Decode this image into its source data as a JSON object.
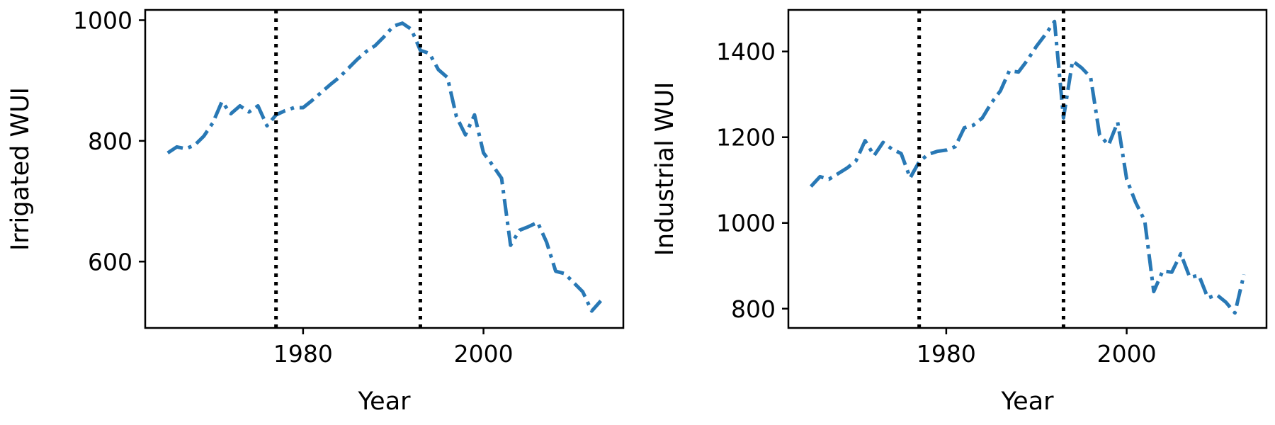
{
  "chart_data": [
    {
      "type": "line",
      "xlabel": "Year",
      "ylabel": "Irrigated WUI",
      "xlim": [
        1962.5,
        2015.5
      ],
      "ylim": [
        490,
        1017
      ],
      "xticks": [
        1980,
        2000
      ],
      "xtick_labels": [
        "1980",
        "2000"
      ],
      "yticks": [
        600,
        800,
        1000
      ],
      "ytick_labels": [
        "600",
        "800",
        "1000"
      ],
      "vlines": [
        1977,
        1993
      ],
      "line_color": "#2878b5",
      "x": [
        1965,
        1966,
        1967,
        1968,
        1969,
        1970,
        1971,
        1972,
        1973,
        1974,
        1975,
        1976,
        1977,
        1978,
        1979,
        1980,
        1981,
        1982,
        1983,
        1984,
        1985,
        1986,
        1987,
        1988,
        1989,
        1990,
        1991,
        1992,
        1993,
        1994,
        1995,
        1996,
        1997,
        1998,
        1999,
        2000,
        2001,
        2002,
        2003,
        2004,
        2005,
        2006,
        2007,
        2008,
        2009,
        2010,
        2011,
        2012,
        2013
      ],
      "values": [
        780,
        790,
        787,
        793,
        808,
        830,
        865,
        845,
        858,
        848,
        858,
        825,
        843,
        850,
        855,
        855,
        867,
        880,
        893,
        905,
        920,
        935,
        948,
        958,
        973,
        990,
        995,
        985,
        950,
        945,
        918,
        905,
        840,
        810,
        843,
        780,
        760,
        738,
        627,
        652,
        658,
        665,
        632,
        584,
        580,
        565,
        550,
        518,
        535
      ]
    },
    {
      "type": "line",
      "xlabel": "Year",
      "ylabel": "Industrial WUI",
      "xlim": [
        1962.5,
        2015.5
      ],
      "ylim": [
        755,
        1497
      ],
      "xticks": [
        1980,
        2000
      ],
      "xtick_labels": [
        "1980",
        "2000"
      ],
      "yticks": [
        800,
        1000,
        1200,
        1400
      ],
      "ytick_labels": [
        "800",
        "1000",
        "1200",
        "1400"
      ],
      "vlines": [
        1977,
        1993
      ],
      "line_color": "#2878b5",
      "x": [
        1965,
        1966,
        1967,
        1968,
        1969,
        1970,
        1971,
        1972,
        1973,
        1974,
        1975,
        1976,
        1977,
        1978,
        1979,
        1980,
        1981,
        1982,
        1983,
        1984,
        1985,
        1986,
        1987,
        1988,
        1989,
        1990,
        1991,
        1992,
        1993,
        1994,
        1995,
        1996,
        1997,
        1998,
        1999,
        2000,
        2001,
        2002,
        2003,
        2004,
        2005,
        2006,
        2007,
        2008,
        2009,
        2010,
        2011,
        2012,
        2013
      ],
      "values": [
        1085,
        1108,
        1102,
        1115,
        1128,
        1145,
        1192,
        1157,
        1188,
        1172,
        1162,
        1105,
        1143,
        1160,
        1167,
        1170,
        1178,
        1222,
        1228,
        1245,
        1280,
        1308,
        1355,
        1352,
        1380,
        1412,
        1440,
        1470,
        1245,
        1378,
        1362,
        1340,
        1205,
        1182,
        1235,
        1102,
        1048,
        1005,
        840,
        888,
        885,
        928,
        873,
        878,
        825,
        832,
        815,
        790,
        880
      ]
    }
  ]
}
